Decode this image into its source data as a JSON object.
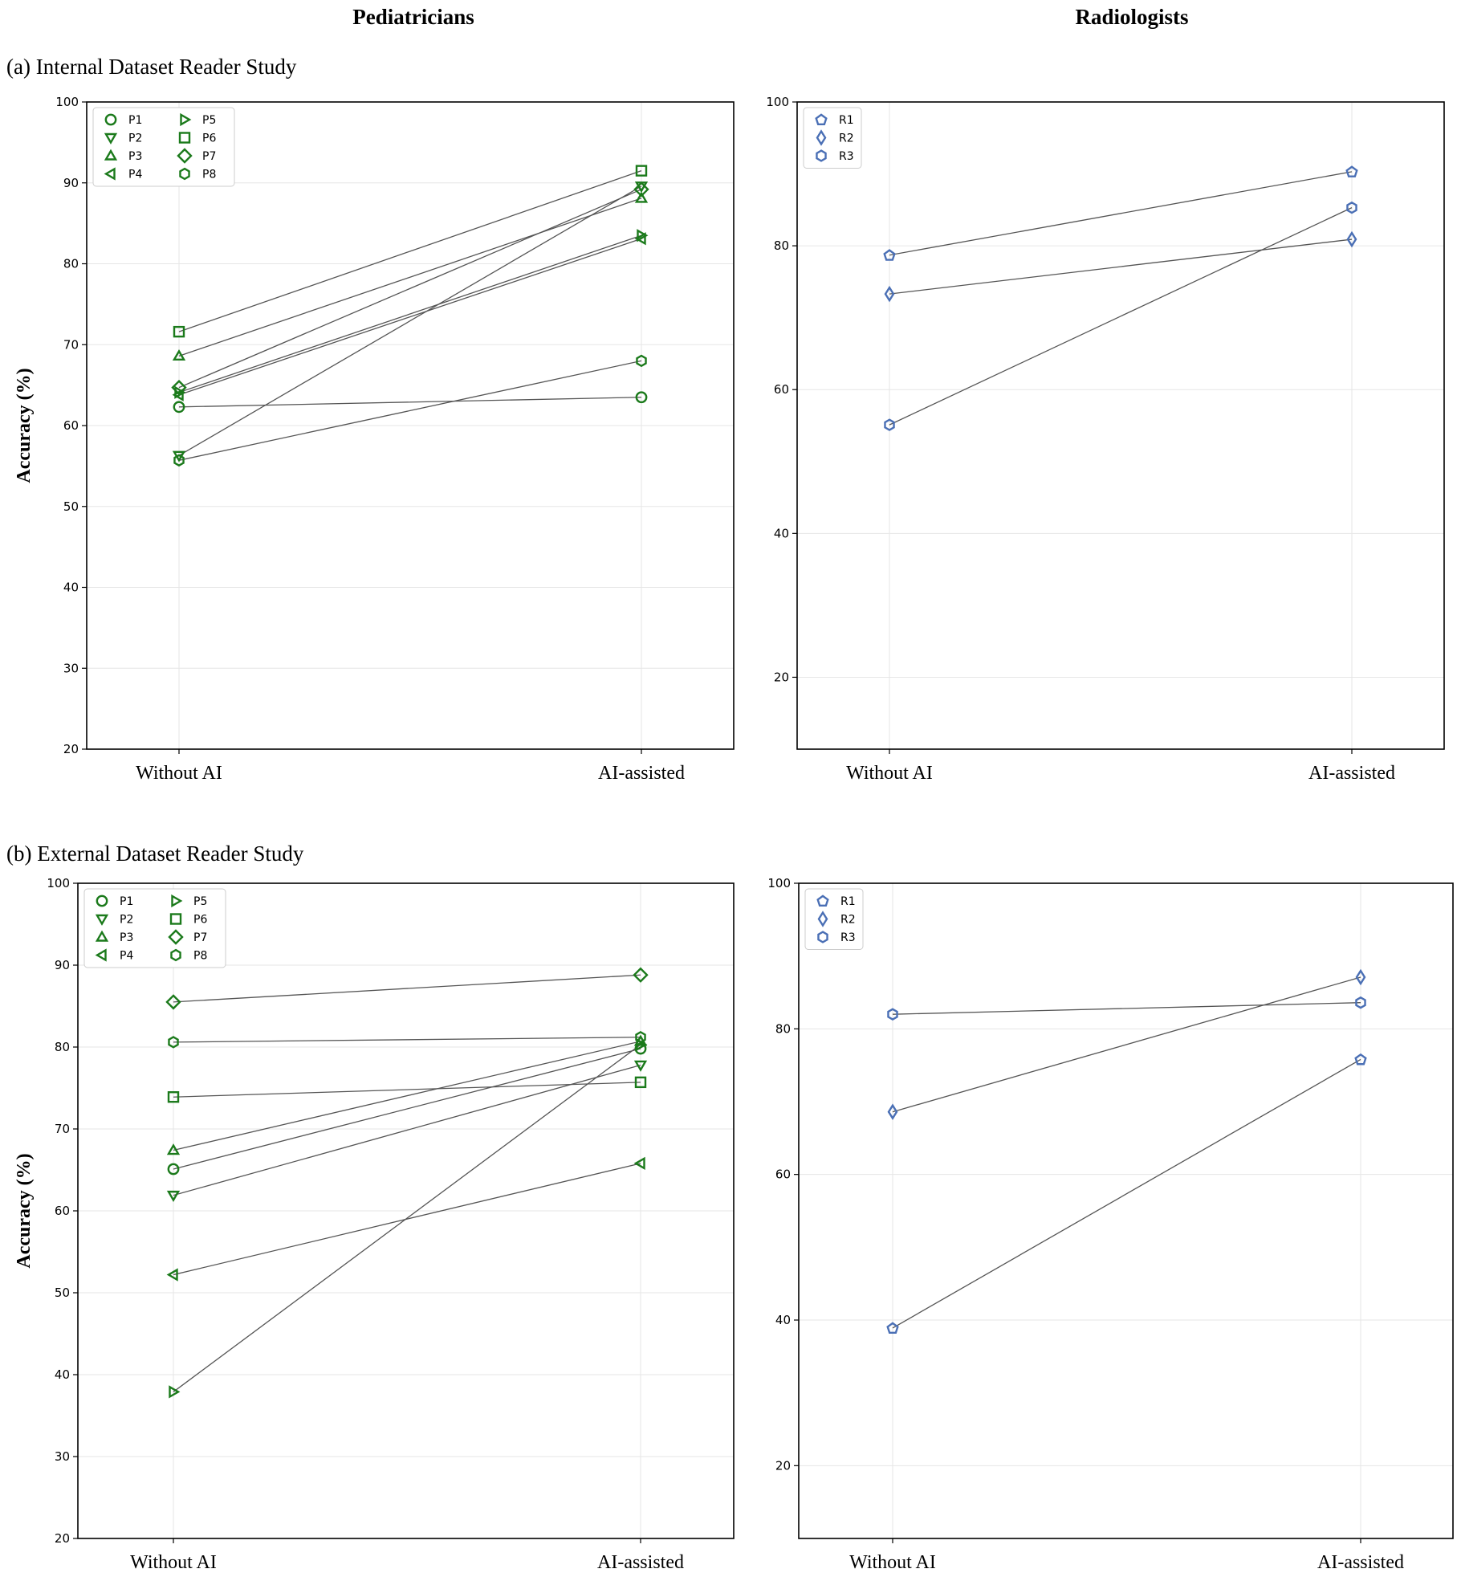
{
  "figure": {
    "column_titles": [
      "Pediatricians",
      "Radiologists"
    ],
    "section_labels": [
      "(a) Internal Dataset Reader Study",
      "(b) External Dataset Reader Study"
    ],
    "colors": {
      "pediatricians": "#1b7a1b",
      "radiologists": "#4a6fb5",
      "lines": "#555555",
      "grid": "#e6e6e6"
    }
  },
  "chart_data": [
    {
      "id": "a-ped",
      "type": "line",
      "section": "(a) Internal Dataset Reader Study",
      "group": "Pediatricians",
      "categories": [
        "Without AI",
        "AI-assisted"
      ],
      "ylabel": "Accuracy (%)",
      "ylim": [
        20,
        100
      ],
      "yticks": [
        20,
        30,
        40,
        50,
        60,
        70,
        80,
        90,
        100
      ],
      "grid": true,
      "legend": "top-left",
      "legend_cols": 2,
      "series": [
        {
          "name": "P1",
          "marker": "circle",
          "values": [
            62.3,
            63.5
          ]
        },
        {
          "name": "P2",
          "marker": "triangle-down",
          "values": [
            56.3,
            89.6
          ]
        },
        {
          "name": "P3",
          "marker": "triangle-up",
          "values": [
            68.6,
            88.1
          ]
        },
        {
          "name": "P4",
          "marker": "triangle-left",
          "values": [
            63.8,
            83.1
          ]
        },
        {
          "name": "P5",
          "marker": "triangle-right",
          "values": [
            64.1,
            83.5
          ]
        },
        {
          "name": "P6",
          "marker": "square",
          "values": [
            71.6,
            91.5
          ]
        },
        {
          "name": "P7",
          "marker": "diamond",
          "values": [
            64.7,
            89.2
          ]
        },
        {
          "name": "P8",
          "marker": "hexagon",
          "values": [
            55.7,
            68.0
          ]
        }
      ]
    },
    {
      "id": "a-rad",
      "type": "line",
      "section": "(a) Internal Dataset Reader Study",
      "group": "Radiologists",
      "categories": [
        "Without AI",
        "AI-assisted"
      ],
      "ylabel": "",
      "ylim": [
        10,
        100
      ],
      "yticks": [
        20,
        40,
        60,
        80,
        100
      ],
      "grid": true,
      "legend": "top-left",
      "legend_cols": 1,
      "series": [
        {
          "name": "R1",
          "marker": "pentagon",
          "values": [
            78.7,
            90.3
          ]
        },
        {
          "name": "R2",
          "marker": "thin-diamond",
          "values": [
            73.3,
            80.9
          ]
        },
        {
          "name": "R3",
          "marker": "hexagon",
          "values": [
            55.1,
            85.3
          ]
        }
      ]
    },
    {
      "id": "b-ped",
      "type": "line",
      "section": "(b) External Dataset Reader Study",
      "group": "Pediatricians",
      "categories": [
        "Without AI",
        "AI-assisted"
      ],
      "ylabel": "Accuracy (%)",
      "ylim": [
        20,
        100
      ],
      "yticks": [
        20,
        30,
        40,
        50,
        60,
        70,
        80,
        90,
        100
      ],
      "grid": true,
      "legend": "top-left",
      "legend_cols": 2,
      "series": [
        {
          "name": "P1",
          "marker": "circle",
          "values": [
            65.1,
            79.8
          ]
        },
        {
          "name": "P2",
          "marker": "triangle-down",
          "values": [
            61.9,
            77.8
          ]
        },
        {
          "name": "P3",
          "marker": "triangle-up",
          "values": [
            67.4,
            80.7
          ]
        },
        {
          "name": "P4",
          "marker": "triangle-left",
          "values": [
            52.2,
            65.8
          ]
        },
        {
          "name": "P5",
          "marker": "triangle-right",
          "values": [
            37.9,
            80.3
          ]
        },
        {
          "name": "P6",
          "marker": "square",
          "values": [
            73.9,
            75.7
          ]
        },
        {
          "name": "P7",
          "marker": "diamond",
          "values": [
            85.5,
            88.8
          ]
        },
        {
          "name": "P8",
          "marker": "hexagon",
          "values": [
            80.6,
            81.2
          ]
        }
      ]
    },
    {
      "id": "b-rad",
      "type": "line",
      "section": "(b) External Dataset Reader Study",
      "group": "Radiologists",
      "categories": [
        "Without AI",
        "AI-assisted"
      ],
      "ylabel": "",
      "ylim": [
        10,
        100
      ],
      "yticks": [
        20,
        40,
        60,
        80,
        100
      ],
      "grid": true,
      "legend": "top-left",
      "legend_cols": 1,
      "series": [
        {
          "name": "R1",
          "marker": "pentagon",
          "values": [
            38.9,
            75.8
          ]
        },
        {
          "name": "R2",
          "marker": "thin-diamond",
          "values": [
            68.6,
            87.1
          ]
        },
        {
          "name": "R3",
          "marker": "hexagon",
          "values": [
            82.0,
            83.6
          ]
        }
      ]
    }
  ]
}
